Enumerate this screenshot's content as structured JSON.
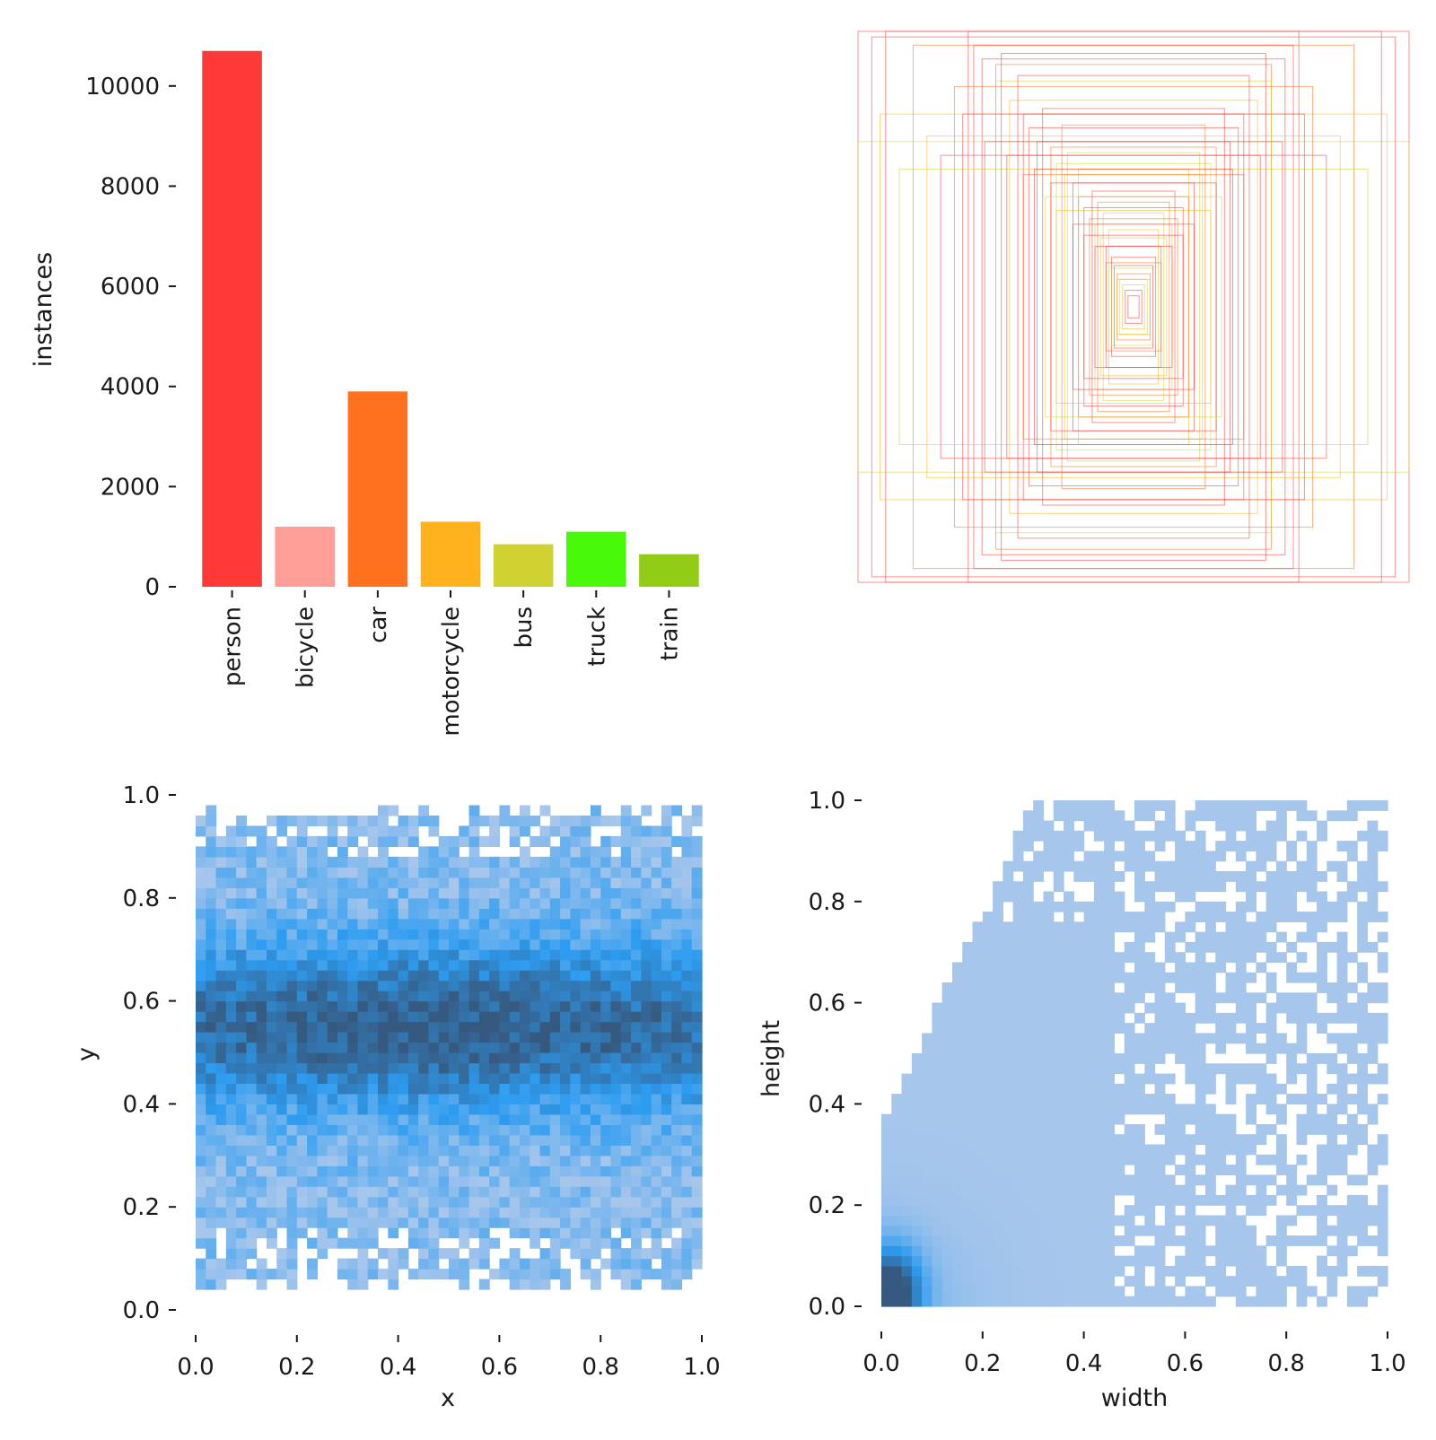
{
  "chart_data": [
    {
      "id": "class-counts",
      "type": "bar",
      "categories": [
        "person",
        "bicycle",
        "car",
        "motorcycle",
        "bus",
        "truck",
        "train"
      ],
      "values": [
        10700,
        1200,
        3900,
        1300,
        850,
        1100,
        650
      ],
      "colors": [
        "#ff3838",
        "#ff9d97",
        "#ff701f",
        "#ffb21d",
        "#cfd231",
        "#48f90a",
        "#92cc17"
      ],
      "xlabel": "",
      "ylabel": "instances",
      "ylim": [
        0,
        11000
      ],
      "yticks": [
        0,
        2000,
        4000,
        6000,
        8000,
        10000
      ],
      "ytick_labels": [
        "0",
        "2000",
        "4000",
        "6000",
        "8000",
        "10000"
      ],
      "grid": false
    },
    {
      "id": "box-overlay",
      "type": "box-overlay",
      "stroke_colors": [
        "#ff3838",
        "#ff3838",
        "#ff3838",
        "#ff701f",
        "#cfd231",
        "#ffb21d"
      ],
      "boxes_wh": [
        [
          1.0,
          1.0
        ],
        [
          0.95,
          0.98
        ],
        [
          0.9,
          1.0
        ],
        [
          0.8,
          0.95
        ],
        [
          1.0,
          0.6
        ],
        [
          0.92,
          0.7
        ],
        [
          0.6,
          1.0
        ],
        [
          0.58,
          0.95
        ],
        [
          0.55,
          0.9
        ],
        [
          0.5,
          0.88
        ],
        [
          0.5,
          0.82
        ],
        [
          0.45,
          0.75
        ],
        [
          0.4,
          0.7
        ],
        [
          0.38,
          0.65
        ],
        [
          0.35,
          0.6
        ],
        [
          0.3,
          0.58
        ],
        [
          0.28,
          0.52
        ],
        [
          0.25,
          0.48
        ],
        [
          0.22,
          0.45
        ],
        [
          0.2,
          0.4
        ],
        [
          0.18,
          0.36
        ],
        [
          0.16,
          0.32
        ],
        [
          0.14,
          0.3
        ],
        [
          0.12,
          0.25
        ],
        [
          0.1,
          0.22
        ],
        [
          0.08,
          0.18
        ],
        [
          0.07,
          0.15
        ],
        [
          0.06,
          0.12
        ],
        [
          0.05,
          0.1
        ],
        [
          0.04,
          0.08
        ],
        [
          0.03,
          0.06
        ],
        [
          0.02,
          0.04
        ],
        [
          0.7,
          0.55
        ],
        [
          0.65,
          0.8
        ],
        [
          0.85,
          0.5
        ],
        [
          0.75,
          0.62
        ],
        [
          0.48,
          0.92
        ],
        [
          0.42,
          0.84
        ],
        [
          0.33,
          0.72
        ],
        [
          0.26,
          0.66
        ],
        [
          0.24,
          0.56
        ],
        [
          0.2,
          0.5
        ],
        [
          0.3,
          0.45
        ],
        [
          0.36,
          0.5
        ],
        [
          0.15,
          0.42
        ],
        [
          0.13,
          0.38
        ],
        [
          0.11,
          0.34
        ],
        [
          0.09,
          0.28
        ],
        [
          0.62,
          0.7
        ],
        [
          0.54,
          0.6
        ],
        [
          0.46,
          0.55
        ],
        [
          0.4,
          0.48
        ],
        [
          0.32,
          0.4
        ],
        [
          0.28,
          0.35
        ],
        [
          0.22,
          0.3
        ],
        [
          0.18,
          0.26
        ],
        [
          0.14,
          0.22
        ],
        [
          0.1,
          0.16
        ],
        [
          0.08,
          0.14
        ],
        [
          0.06,
          0.1
        ]
      ]
    },
    {
      "id": "center-histogram",
      "type": "heatmap",
      "xlabel": "x",
      "ylabel": "y",
      "xlim": [
        0,
        1
      ],
      "ylim": [
        0,
        1
      ],
      "bins": 50,
      "data_range": {
        "x": [
          0.0,
          1.0
        ],
        "y": [
          0.05,
          0.98
        ]
      },
      "density_peak": {
        "x": 0.5,
        "y": 0.55
      },
      "xticks": [
        0.0,
        0.2,
        0.4,
        0.6,
        0.8,
        1.0
      ],
      "xtick_labels": [
        "0.0",
        "0.2",
        "0.4",
        "0.6",
        "0.8",
        "1.0"
      ],
      "yticks": [
        0.0,
        0.2,
        0.4,
        0.6,
        0.8,
        1.0
      ],
      "ytick_labels": [
        "0.0",
        "0.2",
        "0.4",
        "0.6",
        "0.8",
        "1.0"
      ],
      "palette": [
        "#a7c6ec",
        "#2d9cf0",
        "#36597f"
      ]
    },
    {
      "id": "size-histogram",
      "type": "heatmap",
      "xlabel": "width",
      "ylabel": "height",
      "xlim": [
        0,
        1
      ],
      "ylim": [
        0,
        1
      ],
      "bins": 50,
      "density_peak": {
        "x": 0.02,
        "y": 0.03
      },
      "xticks": [
        0.0,
        0.2,
        0.4,
        0.6,
        0.8,
        1.0
      ],
      "xtick_labels": [
        "0.0",
        "0.2",
        "0.4",
        "0.6",
        "0.8",
        "1.0"
      ],
      "yticks": [
        0.0,
        0.2,
        0.4,
        0.6,
        0.8,
        1.0
      ],
      "ytick_labels": [
        "0.0",
        "0.2",
        "0.4",
        "0.6",
        "0.8",
        "1.0"
      ],
      "palette": [
        "#a7c6ec",
        "#2d9cf0",
        "#36597f"
      ]
    }
  ]
}
